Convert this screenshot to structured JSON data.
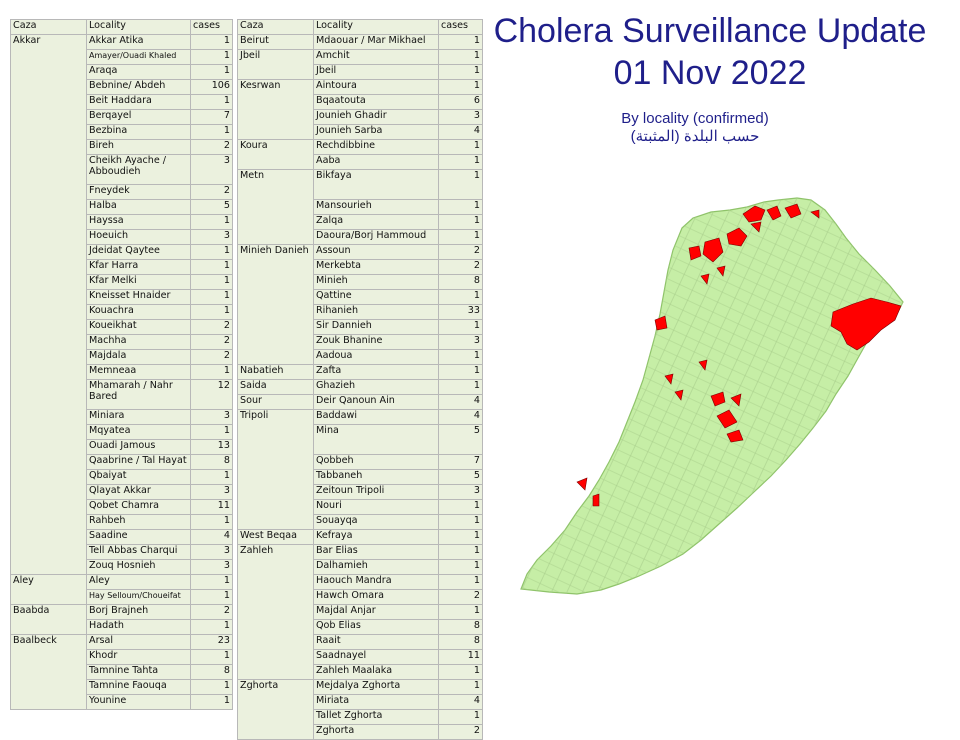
{
  "title": {
    "line1": "Cholera Surveillance Update",
    "line2": "01 Nov 2022"
  },
  "subtitle": {
    "en": "By locality (confirmed)",
    "ar": "حسب البلدة (المثبتة)"
  },
  "colors": {
    "title": "#1f1f8a",
    "table_bg": "#ebf1de",
    "map_fill": "#c6eea6",
    "map_case": "#ff0000"
  },
  "headers": {
    "caza": "Caza",
    "locality": "Locality",
    "cases": "cases"
  },
  "table_left": [
    {
      "caza": "Akkar",
      "rows": [
        {
          "locality": "Akkar Atika",
          "cases": "1"
        },
        {
          "locality": "Amayer/Ouadi Khaled",
          "cases": "1",
          "small": true
        },
        {
          "locality": "Araqa",
          "cases": "1"
        },
        {
          "locality": "Bebnine/ Abdeh",
          "cases": "106"
        },
        {
          "locality": "Beit Haddara",
          "cases": "1"
        },
        {
          "locality": "Berqayel",
          "cases": "7"
        },
        {
          "locality": "Bezbina",
          "cases": "1"
        },
        {
          "locality": "Bireh",
          "cases": "2"
        },
        {
          "locality": "Cheikh Ayache / Abboudieh",
          "cases": "3",
          "tall": true
        },
        {
          "locality": "Fneydek",
          "cases": "2"
        },
        {
          "locality": "Halba",
          "cases": "5"
        },
        {
          "locality": "Hayssa",
          "cases": "1"
        },
        {
          "locality": "Hoeuich",
          "cases": "3"
        },
        {
          "locality": "Jdeidat Qaytee",
          "cases": "1"
        },
        {
          "locality": "Kfar Harra",
          "cases": "1"
        },
        {
          "locality": "Kfar Melki",
          "cases": "1"
        },
        {
          "locality": "Kneisset Hnaider",
          "cases": "1"
        },
        {
          "locality": "Kouachra",
          "cases": "1"
        },
        {
          "locality": "Koueikhat",
          "cases": "2"
        },
        {
          "locality": "Machha",
          "cases": "2"
        },
        {
          "locality": "Majdala",
          "cases": "2"
        },
        {
          "locality": "Memneaa",
          "cases": "1"
        },
        {
          "locality": "Mhamarah / Nahr Bared",
          "cases": "12",
          "tall": true
        },
        {
          "locality": "Miniara",
          "cases": "3"
        },
        {
          "locality": "Mqyatea",
          "cases": "1"
        },
        {
          "locality": "Ouadi Jamous",
          "cases": "13"
        },
        {
          "locality": "Qaabrine / Tal Hayat",
          "cases": "8"
        },
        {
          "locality": "Qbaiyat",
          "cases": "1"
        },
        {
          "locality": "Qlayat Akkar",
          "cases": "3"
        },
        {
          "locality": "Qobet Chamra",
          "cases": "11"
        },
        {
          "locality": "Rahbeh",
          "cases": "1"
        },
        {
          "locality": "Saadine",
          "cases": "4"
        },
        {
          "locality": "Tell Abbas Charqui",
          "cases": "3"
        },
        {
          "locality": "Zouq Hosnieh",
          "cases": "3"
        }
      ]
    },
    {
      "caza": "Aley",
      "rows": [
        {
          "locality": "Aley",
          "cases": "1"
        },
        {
          "locality": "Hay Selloum/Choueifat",
          "cases": "1",
          "small": true
        }
      ]
    },
    {
      "caza": "Baabda",
      "rows": [
        {
          "locality": "Borj Brajneh",
          "cases": "2"
        },
        {
          "locality": "Hadath",
          "cases": "1"
        }
      ]
    },
    {
      "caza": "Baalbeck",
      "rows": [
        {
          "locality": "Arsal",
          "cases": "23"
        },
        {
          "locality": "Khodr",
          "cases": "1"
        },
        {
          "locality": "Tamnine Tahta",
          "cases": "8"
        },
        {
          "locality": "Tamnine Faouqa",
          "cases": "1"
        },
        {
          "locality": "Younine",
          "cases": "1"
        }
      ]
    }
  ],
  "table_right": [
    {
      "caza": "Beirut",
      "rows": [
        {
          "locality": "Mdaouar / Mar Mikhael",
          "cases": "1"
        }
      ]
    },
    {
      "caza": "Jbeil",
      "rows": [
        {
          "locality": "Amchit",
          "cases": "1"
        },
        {
          "locality": "Jbeil",
          "cases": "1"
        }
      ]
    },
    {
      "caza": "Kesrwan",
      "rows": [
        {
          "locality": "Aintoura",
          "cases": "1"
        },
        {
          "locality": "Bqaatouta",
          "cases": "6"
        },
        {
          "locality": "Jounieh Ghadir",
          "cases": "3"
        },
        {
          "locality": "Jounieh Sarba",
          "cases": "4"
        }
      ]
    },
    {
      "caza": "Koura",
      "rows": [
        {
          "locality": "Rechdibbine",
          "cases": "1"
        },
        {
          "locality": "Aaba",
          "cases": "1"
        }
      ]
    },
    {
      "caza": "Metn",
      "rows": [
        {
          "locality": "Bikfaya",
          "cases": "1",
          "tall": true
        },
        {
          "locality": "Mansourieh",
          "cases": "1"
        },
        {
          "locality": "Zalqa",
          "cases": "1"
        },
        {
          "locality": "Daoura/Borj Hammoud",
          "cases": "1"
        }
      ]
    },
    {
      "caza": "Minieh Danieh",
      "rows": [
        {
          "locality": "Assoun",
          "cases": "2"
        },
        {
          "locality": "Merkebta",
          "cases": "2"
        },
        {
          "locality": "Minieh",
          "cases": "8"
        },
        {
          "locality": "Qattine",
          "cases": "1"
        },
        {
          "locality": "Rihanieh",
          "cases": "33"
        },
        {
          "locality": "Sir Dannieh",
          "cases": "1"
        },
        {
          "locality": "Zouk Bhanine",
          "cases": "3"
        },
        {
          "locality": "Aadoua",
          "cases": "1"
        }
      ]
    },
    {
      "caza": "Nabatieh",
      "rows": [
        {
          "locality": "Zafta",
          "cases": "1"
        }
      ]
    },
    {
      "caza": "Saida",
      "rows": [
        {
          "locality": "Ghazieh",
          "cases": "1"
        }
      ]
    },
    {
      "caza": "Sour",
      "rows": [
        {
          "locality": "Deir Qanoun Ain",
          "cases": "4"
        }
      ]
    },
    {
      "caza": "Tripoli",
      "rows": [
        {
          "locality": "Baddawi",
          "cases": "4"
        },
        {
          "locality": "Mina",
          "cases": "5",
          "tall": true
        },
        {
          "locality": "Qobbeh",
          "cases": "7"
        },
        {
          "locality": "Tabbaneh",
          "cases": "5"
        },
        {
          "locality": "Zeitoun Tripoli",
          "cases": "3"
        },
        {
          "locality": "Nouri",
          "cases": "1"
        },
        {
          "locality": "Souayqa",
          "cases": "1"
        }
      ]
    },
    {
      "caza": "West Beqaa",
      "rows": [
        {
          "locality": "Kefraya",
          "cases": "1"
        }
      ]
    },
    {
      "caza": "Zahleh",
      "rows": [
        {
          "locality": "Bar Elias",
          "cases": "1"
        },
        {
          "locality": "Dalhamieh",
          "cases": "1"
        },
        {
          "locality": "Haouch Mandra",
          "cases": "1"
        },
        {
          "locality": "Hawch Omara",
          "cases": "2"
        },
        {
          "locality": "Majdal Anjar",
          "cases": "1"
        },
        {
          "locality": "Qob Elias",
          "cases": "8"
        },
        {
          "locality": "Raait",
          "cases": "8"
        },
        {
          "locality": "Saadnayel",
          "cases": "11"
        },
        {
          "locality": "Zahleh Maalaka",
          "cases": "1"
        }
      ]
    },
    {
      "caza": "Zghorta",
      "rows": [
        {
          "locality": "Mejdalya Zghorta",
          "cases": "1"
        },
        {
          "locality": "Miriata",
          "cases": "4"
        },
        {
          "locality": "Tallet Zghorta",
          "cases": "1"
        },
        {
          "locality": "Zghorta",
          "cases": "2"
        }
      ]
    }
  ]
}
